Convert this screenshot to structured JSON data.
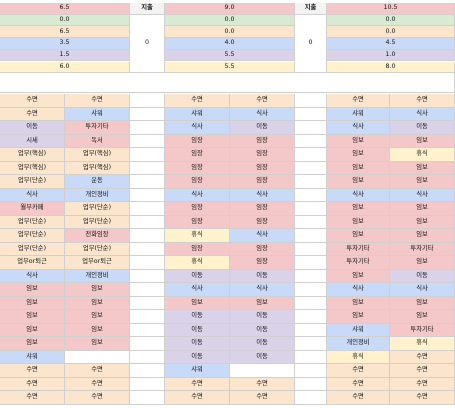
{
  "colors": {
    "red": "#f4c7c8",
    "green": "#d9ead3",
    "orange": "#fce5cd",
    "blue": "#c9daf8",
    "purple": "#d9d2e9",
    "yellow": "#fff2cc",
    "cyan": "#d0e0e3"
  },
  "summary": {
    "header_label": "지출",
    "blocks": [
      {
        "values": [
          "6.5",
          "0.0",
          "6.5",
          "3.5",
          "1.5",
          "6.0"
        ],
        "colors": [
          "red",
          "green",
          "orange",
          "blue",
          "purple",
          "yellow"
        ],
        "spend": "0"
      },
      {
        "values": [
          "9.0",
          "0.0",
          "0.0",
          "4.0",
          "5.5",
          "5.5"
        ],
        "colors": [
          "red",
          "green",
          "orange",
          "blue",
          "purple",
          "yellow"
        ],
        "spend": "0"
      },
      {
        "values": [
          "10.5",
          "0.0",
          "0.0",
          "4.5",
          "1.0",
          "8.0"
        ],
        "colors": [
          "red",
          "green",
          "orange",
          "blue",
          "purple",
          "yellow"
        ],
        "spend": null
      }
    ]
  },
  "schedule": {
    "days": [
      {
        "rows": [
          {
            "a": "수면",
            "b": "수면",
            "ca": "orange",
            "cb": "orange"
          },
          {
            "a": "수면",
            "b": "샤워",
            "ca": "orange",
            "cb": "blue"
          },
          {
            "a": "이동",
            "b": "투자기타",
            "ca": "purple",
            "cb": "red"
          },
          {
            "a": "시세",
            "b": "독서",
            "ca": "purple",
            "cb": "red"
          },
          {
            "a": "업무(핵심)",
            "b": "업무(핵심)",
            "ca": "orange",
            "cb": "orange"
          },
          {
            "a": "업무(핵심)",
            "b": "업무(핵심)",
            "ca": "orange",
            "cb": "orange"
          },
          {
            "a": "업무(단순)",
            "b": "운동",
            "ca": "orange",
            "cb": "blue"
          },
          {
            "a": "식사",
            "b": "개인정비",
            "ca": "blue",
            "cb": "blue"
          },
          {
            "a": "월부카페",
            "b": "업무(단순)",
            "ca": "red",
            "cb": "orange"
          },
          {
            "a": "업무(단순)",
            "b": "업무(단순)",
            "ca": "orange",
            "cb": "orange"
          },
          {
            "a": "업무(단순)",
            "b": "전화임장",
            "ca": "orange",
            "cb": "red"
          },
          {
            "a": "업무(단순)",
            "b": "업무(단순)",
            "ca": "orange",
            "cb": "orange"
          },
          {
            "a": "업무or퇴근",
            "b": "업무or퇴근",
            "ca": "orange",
            "cb": "orange"
          },
          {
            "a": "식사",
            "b": "개인정비",
            "ca": "blue",
            "cb": "blue"
          },
          {
            "a": "임보",
            "b": "임보",
            "ca": "red",
            "cb": "red"
          },
          {
            "a": "임보",
            "b": "임보",
            "ca": "red",
            "cb": "red"
          },
          {
            "a": "임보",
            "b": "임보",
            "ca": "red",
            "cb": "red"
          },
          {
            "a": "임보",
            "b": "임보",
            "ca": "red",
            "cb": "red"
          },
          {
            "a": "임보",
            "b": "임보",
            "ca": "red",
            "cb": "red"
          },
          {
            "a": "샤워",
            "b": "",
            "ca": "blue",
            "cb": "white"
          },
          {
            "a": "수면",
            "b": "수면",
            "ca": "orange",
            "cb": "orange"
          },
          {
            "a": "수면",
            "b": "수면",
            "ca": "orange",
            "cb": "orange"
          },
          {
            "a": "수면",
            "b": "수면",
            "ca": "orange",
            "cb": "orange"
          }
        ]
      },
      {
        "rows": [
          {
            "a": "수면",
            "b": "수면",
            "ca": "orange",
            "cb": "orange"
          },
          {
            "a": "샤워",
            "b": "식사",
            "ca": "blue",
            "cb": "blue"
          },
          {
            "a": "식사",
            "b": "이동",
            "ca": "blue",
            "cb": "purple"
          },
          {
            "a": "임장",
            "b": "임장",
            "ca": "red",
            "cb": "red"
          },
          {
            "a": "임장",
            "b": "임장",
            "ca": "red",
            "cb": "red"
          },
          {
            "a": "임장",
            "b": "임장",
            "ca": "red",
            "cb": "red"
          },
          {
            "a": "임장",
            "b": "임장",
            "ca": "red",
            "cb": "red"
          },
          {
            "a": "식사",
            "b": "식사",
            "ca": "blue",
            "cb": "blue"
          },
          {
            "a": "임장",
            "b": "임장",
            "ca": "red",
            "cb": "red"
          },
          {
            "a": "임장",
            "b": "임장",
            "ca": "red",
            "cb": "red"
          },
          {
            "a": "휴식",
            "b": "식사",
            "ca": "yellow",
            "cb": "blue"
          },
          {
            "a": "임장",
            "b": "임장",
            "ca": "red",
            "cb": "red"
          },
          {
            "a": "휴식",
            "b": "임장",
            "ca": "yellow",
            "cb": "red"
          },
          {
            "a": "이동",
            "b": "이동",
            "ca": "purple",
            "cb": "purple"
          },
          {
            "a": "식사",
            "b": "식사",
            "ca": "blue",
            "cb": "blue"
          },
          {
            "a": "임보",
            "b": "임보",
            "ca": "red",
            "cb": "red"
          },
          {
            "a": "이동",
            "b": "이동",
            "ca": "purple",
            "cb": "purple"
          },
          {
            "a": "이동",
            "b": "이동",
            "ca": "purple",
            "cb": "purple"
          },
          {
            "a": "이동",
            "b": "이동",
            "ca": "purple",
            "cb": "purple"
          },
          {
            "a": "이동",
            "b": "이동",
            "ca": "purple",
            "cb": "purple"
          },
          {
            "a": "샤워",
            "b": "",
            "ca": "blue",
            "cb": "white"
          },
          {
            "a": "수면",
            "b": "수면",
            "ca": "orange",
            "cb": "orange"
          },
          {
            "a": "수면",
            "b": "수면",
            "ca": "orange",
            "cb": "orange"
          }
        ]
      },
      {
        "rows": [
          {
            "a": "수면",
            "b": "수면",
            "ca": "orange",
            "cb": "orange"
          },
          {
            "a": "샤워",
            "b": "식사",
            "ca": "blue",
            "cb": "blue"
          },
          {
            "a": "식사",
            "b": "이동",
            "ca": "blue",
            "cb": "purple"
          },
          {
            "a": "임보",
            "b": "임보",
            "ca": "red",
            "cb": "red"
          },
          {
            "a": "임보",
            "b": "휴식",
            "ca": "red",
            "cb": "yellow"
          },
          {
            "a": "임보",
            "b": "임보",
            "ca": "red",
            "cb": "red"
          },
          {
            "a": "임보",
            "b": "임보",
            "ca": "red",
            "cb": "red"
          },
          {
            "a": "식사",
            "b": "식사",
            "ca": "blue",
            "cb": "blue"
          },
          {
            "a": "임보",
            "b": "임보",
            "ca": "red",
            "cb": "red"
          },
          {
            "a": "임보",
            "b": "임보",
            "ca": "red",
            "cb": "red"
          },
          {
            "a": "임보",
            "b": "임보",
            "ca": "red",
            "cb": "red"
          },
          {
            "a": "투자기타",
            "b": "투자기타",
            "ca": "red",
            "cb": "red"
          },
          {
            "a": "투자기타",
            "b": "임보",
            "ca": "red",
            "cb": "red"
          },
          {
            "a": "임보",
            "b": "이동",
            "ca": "red",
            "cb": "purple"
          },
          {
            "a": "식사",
            "b": "식사",
            "ca": "blue",
            "cb": "blue"
          },
          {
            "a": "임보",
            "b": "임보",
            "ca": "red",
            "cb": "red"
          },
          {
            "a": "임보",
            "b": "임보",
            "ca": "red",
            "cb": "red"
          },
          {
            "a": "샤워",
            "b": "투자기타",
            "ca": "blue",
            "cb": "red"
          },
          {
            "a": "개인정비",
            "b": "휴식",
            "ca": "blue",
            "cb": "yellow"
          },
          {
            "a": "휴식",
            "b": "수면",
            "ca": "yellow",
            "cb": "orange"
          },
          {
            "a": "수면",
            "b": "수면",
            "ca": "orange",
            "cb": "orange"
          },
          {
            "a": "수면",
            "b": "수면",
            "ca": "orange",
            "cb": "orange"
          },
          {
            "a": "수면",
            "b": "수면",
            "ca": "orange",
            "cb": "orange"
          }
        ]
      }
    ]
  }
}
